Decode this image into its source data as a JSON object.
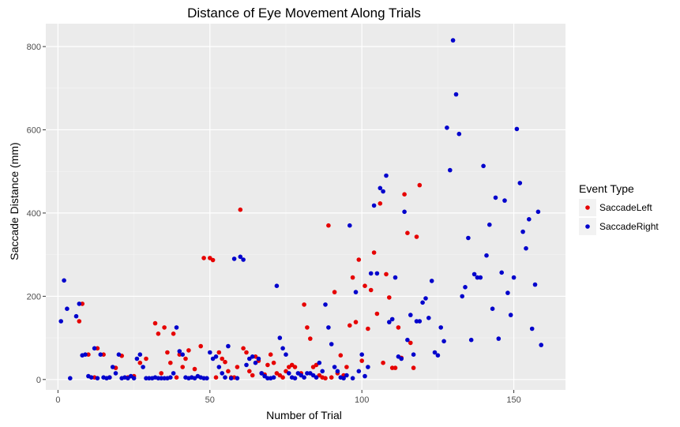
{
  "chart_data": {
    "type": "scatter",
    "title": "Distance of Eye Movement Along Trials",
    "xlabel": "Number of Trial",
    "ylabel": "Saccade Distance (mm)",
    "xlim": [
      -4,
      167
    ],
    "ylim": [
      -25,
      855
    ],
    "x_ticks": [
      0,
      50,
      100,
      150
    ],
    "y_ticks": [
      0,
      200,
      400,
      600,
      800
    ],
    "grid": true,
    "panel_color": "#ebebeb",
    "legend": {
      "title": "Event Type",
      "position": "right"
    },
    "series": [
      {
        "name": "SaccadeLeft",
        "color": "#e60000",
        "points": [
          [
            7,
            140
          ],
          [
            8,
            182
          ],
          [
            10,
            60
          ],
          [
            12,
            5
          ],
          [
            13,
            75
          ],
          [
            15,
            60
          ],
          [
            17,
            5
          ],
          [
            19,
            28
          ],
          [
            21,
            57
          ],
          [
            23,
            5
          ],
          [
            25,
            8
          ],
          [
            27,
            40
          ],
          [
            29,
            50
          ],
          [
            32,
            135
          ],
          [
            33,
            110
          ],
          [
            34,
            15
          ],
          [
            35,
            125
          ],
          [
            36,
            65
          ],
          [
            37,
            40
          ],
          [
            38,
            110
          ],
          [
            39,
            5
          ],
          [
            40,
            60
          ],
          [
            41,
            30
          ],
          [
            42,
            50
          ],
          [
            43,
            70
          ],
          [
            44,
            5
          ],
          [
            45,
            25
          ],
          [
            47,
            80
          ],
          [
            48,
            292
          ],
          [
            50,
            292
          ],
          [
            51,
            287
          ],
          [
            52,
            5
          ],
          [
            53,
            65
          ],
          [
            54,
            50
          ],
          [
            55,
            42
          ],
          [
            56,
            20
          ],
          [
            57,
            5
          ],
          [
            58,
            5
          ],
          [
            59,
            30
          ],
          [
            60,
            408
          ],
          [
            61,
            75
          ],
          [
            62,
            65
          ],
          [
            63,
            20
          ],
          [
            64,
            10
          ],
          [
            65,
            55
          ],
          [
            66,
            45
          ],
          [
            67,
            15
          ],
          [
            68,
            12
          ],
          [
            69,
            35
          ],
          [
            70,
            60
          ],
          [
            71,
            40
          ],
          [
            72,
            15
          ],
          [
            73,
            10
          ],
          [
            74,
            5
          ],
          [
            75,
            20
          ],
          [
            76,
            30
          ],
          [
            77,
            35
          ],
          [
            78,
            30
          ],
          [
            80,
            15
          ],
          [
            81,
            180
          ],
          [
            82,
            125
          ],
          [
            83,
            98
          ],
          [
            84,
            30
          ],
          [
            85,
            35
          ],
          [
            86,
            10
          ],
          [
            87,
            5
          ],
          [
            88,
            3
          ],
          [
            89,
            370
          ],
          [
            90,
            5
          ],
          [
            91,
            210
          ],
          [
            92,
            15
          ],
          [
            93,
            58
          ],
          [
            94,
            10
          ],
          [
            95,
            30
          ],
          [
            96,
            130
          ],
          [
            97,
            245
          ],
          [
            98,
            138
          ],
          [
            99,
            288
          ],
          [
            100,
            45
          ],
          [
            101,
            225
          ],
          [
            102,
            122
          ],
          [
            103,
            215
          ],
          [
            104,
            305
          ],
          [
            105,
            158
          ],
          [
            106,
            423
          ],
          [
            107,
            40
          ],
          [
            108,
            253
          ],
          [
            109,
            197
          ],
          [
            110,
            28
          ],
          [
            111,
            28
          ],
          [
            112,
            125
          ],
          [
            113,
            52
          ],
          [
            114,
            445
          ],
          [
            115,
            352
          ],
          [
            116,
            88
          ],
          [
            117,
            28
          ],
          [
            118,
            343
          ],
          [
            119,
            467
          ]
        ]
      },
      {
        "name": "SaccadeRight",
        "color": "#0000cc",
        "points": [
          [
            1,
            140
          ],
          [
            2,
            238
          ],
          [
            3,
            170
          ],
          [
            4,
            3
          ],
          [
            6,
            152
          ],
          [
            7,
            182
          ],
          [
            8,
            58
          ],
          [
            9,
            60
          ],
          [
            10,
            8
          ],
          [
            11,
            5
          ],
          [
            12,
            75
          ],
          [
            13,
            3
          ],
          [
            14,
            60
          ],
          [
            15,
            5
          ],
          [
            16,
            3
          ],
          [
            17,
            5
          ],
          [
            18,
            30
          ],
          [
            19,
            15
          ],
          [
            20,
            60
          ],
          [
            21,
            3
          ],
          [
            22,
            5
          ],
          [
            23,
            3
          ],
          [
            24,
            8
          ],
          [
            25,
            3
          ],
          [
            26,
            50
          ],
          [
            27,
            60
          ],
          [
            28,
            30
          ],
          [
            29,
            3
          ],
          [
            30,
            3
          ],
          [
            31,
            3
          ],
          [
            32,
            5
          ],
          [
            33,
            3
          ],
          [
            34,
            3
          ],
          [
            35,
            3
          ],
          [
            36,
            3
          ],
          [
            37,
            5
          ],
          [
            38,
            15
          ],
          [
            39,
            125
          ],
          [
            40,
            68
          ],
          [
            41,
            60
          ],
          [
            42,
            5
          ],
          [
            43,
            3
          ],
          [
            44,
            5
          ],
          [
            45,
            3
          ],
          [
            46,
            8
          ],
          [
            47,
            5
          ],
          [
            48,
            3
          ],
          [
            49,
            3
          ],
          [
            50,
            65
          ],
          [
            51,
            50
          ],
          [
            52,
            55
          ],
          [
            53,
            30
          ],
          [
            54,
            15
          ],
          [
            55,
            5
          ],
          [
            56,
            80
          ],
          [
            57,
            3
          ],
          [
            58,
            290
          ],
          [
            59,
            3
          ],
          [
            60,
            295
          ],
          [
            61,
            288
          ],
          [
            62,
            35
          ],
          [
            63,
            50
          ],
          [
            64,
            55
          ],
          [
            65,
            40
          ],
          [
            66,
            50
          ],
          [
            67,
            15
          ],
          [
            68,
            8
          ],
          [
            69,
            3
          ],
          [
            70,
            3
          ],
          [
            71,
            5
          ],
          [
            72,
            225
          ],
          [
            73,
            100
          ],
          [
            74,
            75
          ],
          [
            75,
            60
          ],
          [
            76,
            15
          ],
          [
            77,
            5
          ],
          [
            78,
            3
          ],
          [
            79,
            15
          ],
          [
            80,
            10
          ],
          [
            81,
            5
          ],
          [
            82,
            15
          ],
          [
            83,
            15
          ],
          [
            84,
            10
          ],
          [
            85,
            5
          ],
          [
            86,
            40
          ],
          [
            87,
            20
          ],
          [
            88,
            180
          ],
          [
            89,
            125
          ],
          [
            90,
            85
          ],
          [
            91,
            30
          ],
          [
            92,
            20
          ],
          [
            93,
            5
          ],
          [
            94,
            3
          ],
          [
            95,
            10
          ],
          [
            96,
            370
          ],
          [
            97,
            3
          ],
          [
            98,
            210
          ],
          [
            99,
            20
          ],
          [
            100,
            60
          ],
          [
            101,
            8
          ],
          [
            102,
            30
          ],
          [
            103,
            255
          ],
          [
            104,
            418
          ],
          [
            105,
            255
          ],
          [
            106,
            460
          ],
          [
            107,
            452
          ],
          [
            108,
            490
          ],
          [
            109,
            138
          ],
          [
            110,
            145
          ],
          [
            111,
            245
          ],
          [
            112,
            55
          ],
          [
            113,
            50
          ],
          [
            114,
            403
          ],
          [
            115,
            95
          ],
          [
            116,
            155
          ],
          [
            117,
            60
          ],
          [
            118,
            140
          ],
          [
            119,
            140
          ],
          [
            120,
            185
          ],
          [
            121,
            195
          ],
          [
            122,
            148
          ],
          [
            123,
            237
          ],
          [
            124,
            65
          ],
          [
            125,
            58
          ],
          [
            126,
            125
          ],
          [
            127,
            92
          ],
          [
            128,
            605
          ],
          [
            129,
            503
          ],
          [
            130,
            815
          ],
          [
            131,
            685
          ],
          [
            132,
            590
          ],
          [
            133,
            200
          ],
          [
            134,
            222
          ],
          [
            135,
            340
          ],
          [
            136,
            95
          ],
          [
            137,
            253
          ],
          [
            138,
            245
          ],
          [
            139,
            245
          ],
          [
            140,
            513
          ],
          [
            141,
            298
          ],
          [
            142,
            372
          ],
          [
            143,
            170
          ],
          [
            144,
            437
          ],
          [
            145,
            98
          ],
          [
            146,
            257
          ],
          [
            147,
            430
          ],
          [
            148,
            208
          ],
          [
            149,
            155
          ],
          [
            150,
            245
          ],
          [
            151,
            602
          ],
          [
            152,
            472
          ],
          [
            153,
            355
          ],
          [
            154,
            315
          ],
          [
            155,
            385
          ],
          [
            156,
            122
          ],
          [
            157,
            228
          ],
          [
            158,
            403
          ],
          [
            159,
            83
          ]
        ]
      }
    ]
  }
}
